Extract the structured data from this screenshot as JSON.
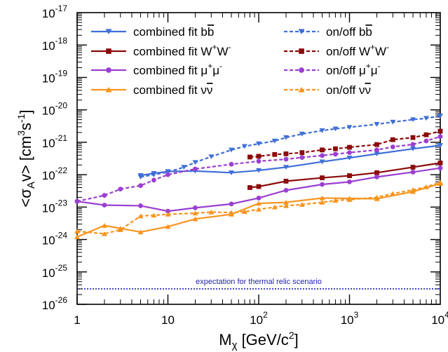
{
  "chart_data": {
    "type": "line",
    "xscale": "log",
    "yscale": "log",
    "xlim": [
      1,
      10000
    ],
    "ylim": [
      1e-26,
      1e-17
    ],
    "grid": false,
    "legend_placement": "top",
    "xlabel_main": "M",
    "xlabel_sub": "χ",
    "xlabel_unit": " [GeV/c",
    "xlabel_sup": "2",
    "xlabel_end": "]",
    "ylabel": "<σ",
    "ylabel_sub": "A",
    "ylabel_mid": "v> [cm",
    "ylabel_sup1": "3",
    "ylabel_mid2": "s",
    "ylabel_sup2": "-1",
    "ylabel_end": "]",
    "x_tick_labels": [
      {
        "value": 1,
        "base": "1",
        "exp": ""
      },
      {
        "value": 10,
        "base": "10",
        "exp": ""
      },
      {
        "value": 100,
        "base": "10",
        "exp": "2"
      },
      {
        "value": 1000,
        "base": "10",
        "exp": "3"
      },
      {
        "value": 10000,
        "base": "10",
        "exp": "4"
      }
    ],
    "y_tick_labels": [
      {
        "value": 1e-26,
        "base": "10",
        "exp": "-26"
      },
      {
        "value": 1e-25,
        "base": "10",
        "exp": "-25"
      },
      {
        "value": 1e-24,
        "base": "10",
        "exp": "-24"
      },
      {
        "value": 1e-23,
        "base": "10",
        "exp": "-23"
      },
      {
        "value": 1e-22,
        "base": "10",
        "exp": "-22"
      },
      {
        "value": 1e-21,
        "base": "10",
        "exp": "-21"
      },
      {
        "value": 1e-20,
        "base": "10",
        "exp": "-20"
      },
      {
        "value": 1e-19,
        "base": "10",
        "exp": "-19"
      },
      {
        "value": 1e-18,
        "base": "10",
        "exp": "-18"
      },
      {
        "value": 1e-17,
        "base": "10",
        "exp": "-17"
      }
    ],
    "annotation": {
      "text": "expectation for thermal relic scenario",
      "y": 3e-26,
      "color": "#1f1fb4"
    },
    "series": [
      {
        "id": "cf-bb",
        "name": "combined fit b",
        "name_bar": "b",
        "name_sup": "",
        "dashed": false,
        "marker": "triangle-down",
        "color": "#3f6fd8",
        "x": [
          5,
          7,
          10,
          20,
          50,
          100,
          200,
          500,
          1000,
          2000,
          5000,
          10000
        ],
        "y": [
          9.5e-23,
          1.1e-22,
          1.25e-22,
          1.3e-22,
          1.15e-22,
          1.35e-22,
          1.7e-22,
          2.5e-22,
          3.3e-22,
          4.4e-22,
          6.3e-22,
          8e-22
        ]
      },
      {
        "id": "cf-ww",
        "name": "combined fit W",
        "name_bar": "",
        "name_sup": "+",
        "name_tail": "W",
        "name_sup2": "-",
        "dashed": false,
        "marker": "square",
        "color": "#8b0a0a",
        "x": [
          80,
          100,
          200,
          500,
          1000,
          2000,
          5000,
          10000
        ],
        "y": [
          4e-23,
          4.3e-23,
          6.3e-23,
          8e-23,
          9.3e-23,
          1.15e-22,
          1.7e-22,
          2.3e-22
        ]
      },
      {
        "id": "cf-mumu",
        "name": "combined fit μ",
        "name_bar": "",
        "name_sup": "+",
        "name_tail": "μ",
        "name_sup2": "-",
        "dashed": false,
        "marker": "circle",
        "color": "#9a3fd0",
        "x": [
          1,
          2,
          5,
          10,
          20,
          50,
          100,
          200,
          500,
          1000,
          2000,
          5000,
          10000
        ],
        "y": [
          1.5e-23,
          1.15e-23,
          1.1e-23,
          7.5e-24,
          9.5e-24,
          1.25e-23,
          1.9e-23,
          3.3e-23,
          5e-23,
          6e-23,
          8.5e-23,
          1.2e-22,
          1.6e-22
        ]
      },
      {
        "id": "cf-nunu",
        "name": "combined fit ν",
        "name_bar": "ν",
        "name_sup": "",
        "dashed": false,
        "marker": "triangle-up",
        "color": "#f7941d",
        "x": [
          1,
          2,
          3,
          5,
          10,
          20,
          50,
          100,
          200,
          500,
          1000,
          2000,
          5000,
          10000
        ],
        "y": [
          1.2e-24,
          2.7e-24,
          2.2e-24,
          1.7e-24,
          2.5e-24,
          4.3e-24,
          6e-24,
          1.3e-23,
          1.4e-23,
          1.9e-23,
          1.85e-23,
          1.8e-23,
          3e-23,
          5.3e-23
        ]
      },
      {
        "id": "oo-bb",
        "name": "on/off b",
        "name_bar": "b",
        "name_sup": "",
        "dashed": true,
        "marker": "triangle-down",
        "color": "#3f6fd8",
        "x": [
          5,
          7,
          10,
          15,
          20,
          30,
          50,
          70,
          100,
          150,
          200,
          300,
          500,
          700,
          1000,
          2000,
          3000,
          5000,
          7000,
          10000
        ],
        "y": [
          8.5e-23,
          1e-22,
          1.2e-22,
          1.7e-22,
          2.4e-22,
          3.6e-22,
          5.8e-22,
          7.5e-22,
          9e-22,
          1.1e-21,
          1.4e-21,
          1.8e-21,
          2.3e-21,
          2.6e-21,
          2.9e-21,
          3.6e-21,
          4.2e-21,
          5e-21,
          5.5e-21,
          6.5e-21
        ]
      },
      {
        "id": "oo-ww",
        "name": "on/off W",
        "name_bar": "",
        "name_sup": "+",
        "name_tail": "W",
        "name_sup2": "-",
        "dashed": true,
        "marker": "square",
        "color": "#8b0a0a",
        "x": [
          80,
          100,
          150,
          200,
          300,
          500,
          700,
          1000,
          2000,
          3000,
          5000,
          7000,
          10000
        ],
        "y": [
          3.5e-22,
          3.7e-22,
          4.2e-22,
          4.4e-22,
          4.8e-22,
          5.8e-22,
          6.3e-22,
          7e-22,
          8.5e-22,
          1.2e-21,
          1.4e-21,
          1.7e-21,
          2.2e-21
        ]
      },
      {
        "id": "oo-mumu",
        "name": "on/off μ",
        "name_bar": "",
        "name_sup": "+",
        "name_tail": "μ",
        "name_sup2": "-",
        "dashed": true,
        "marker": "circle",
        "color": "#9a3fd0",
        "x": [
          1,
          2,
          3,
          5,
          7,
          10,
          20,
          50,
          100,
          200,
          300,
          500,
          700,
          1000,
          2000,
          3000,
          5000,
          7000,
          10000
        ],
        "y": [
          1.5e-23,
          2.3e-23,
          3.6e-23,
          4.6e-23,
          6.8e-23,
          1e-22,
          1.5e-22,
          2.1e-22,
          2.6e-22,
          3e-22,
          3.4e-22,
          3.9e-22,
          4.3e-22,
          4.8e-22,
          5.8e-22,
          7.2e-22,
          8.6e-22,
          1.1e-21,
          1.5e-21
        ]
      },
      {
        "id": "oo-nunu",
        "name": "on/off ν",
        "name_bar": "ν",
        "name_sup": "",
        "dashed": true,
        "marker": "triangle-up",
        "color": "#f7941d",
        "x": [
          1,
          2,
          3,
          5,
          7,
          10,
          20,
          30,
          50,
          70,
          100,
          150,
          200,
          300,
          500,
          700,
          1000,
          2000,
          3000,
          5000,
          7000,
          10000
        ],
        "y": [
          1.8e-24,
          1.5e-24,
          2e-24,
          5.3e-24,
          5.6e-24,
          6e-24,
          6.5e-24,
          7e-24,
          6.8e-24,
          7.2e-24,
          8.5e-24,
          1e-23,
          1.1e-23,
          1.2e-23,
          1.4e-23,
          1.6e-23,
          1.7e-23,
          2e-23,
          2.6e-23,
          3.4e-23,
          4.2e-23,
          5.8e-23
        ]
      }
    ]
  }
}
